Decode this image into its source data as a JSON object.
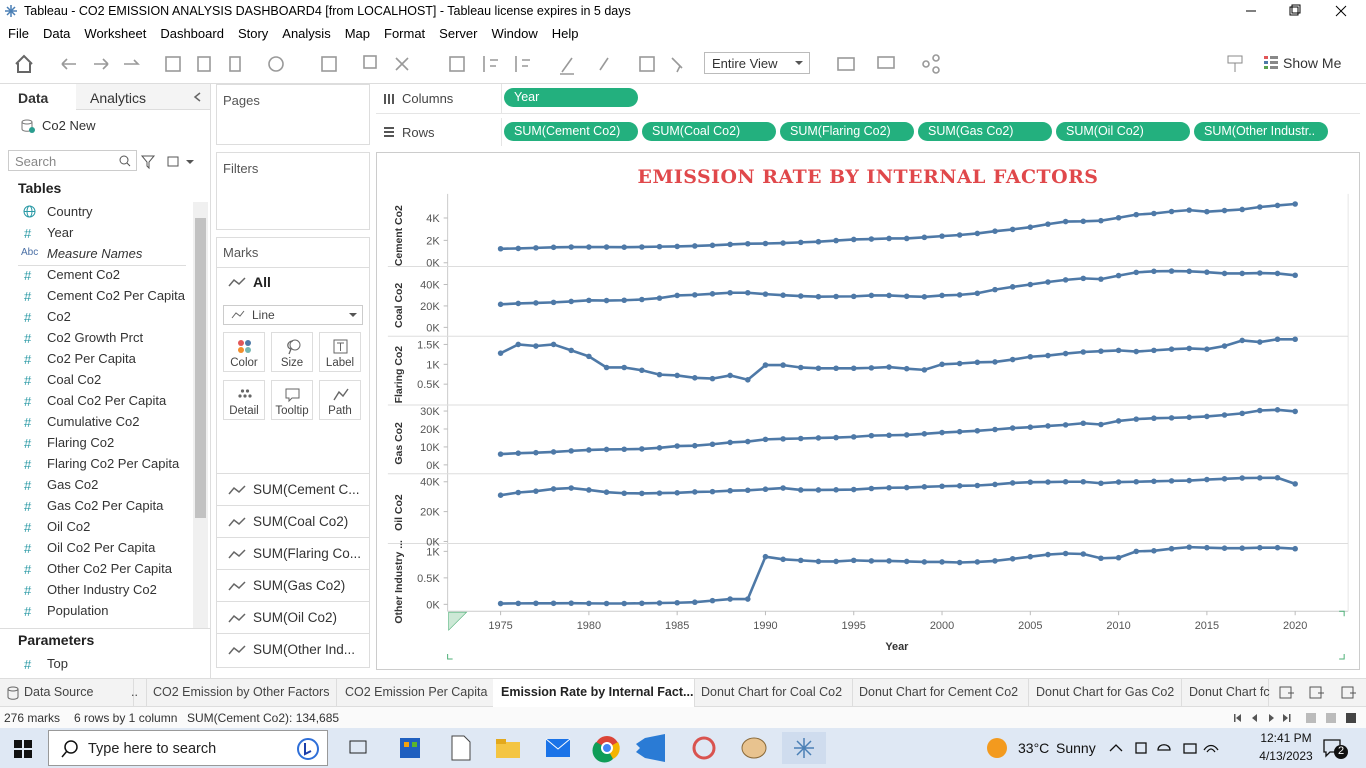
{
  "window": {
    "title": "Tableau - CO2 EMISSION ANALYSIS DASHBOARD4 [from LOCALHOST] - Tableau license expires in 5 days"
  },
  "menu": [
    "File",
    "Data",
    "Worksheet",
    "Dashboard",
    "Story",
    "Analysis",
    "Map",
    "Format",
    "Server",
    "Window",
    "Help"
  ],
  "toolbar": {
    "view_mode": "Entire View",
    "show_me": "Show Me"
  },
  "data_pane": {
    "tabs": [
      "Data",
      "Analytics"
    ],
    "source": "Co2 New",
    "search": "Search",
    "tables_header": "Tables",
    "fields": [
      {
        "name": "Country"
      },
      {
        "icon": "#",
        "name": "Year"
      },
      {
        "icon": "Abc",
        "name": "Measure Names"
      },
      {
        "icon": "#",
        "name": "Cement Co2"
      },
      {
        "icon": "#",
        "name": "Cement Co2 Per Capita"
      },
      {
        "icon": "#",
        "name": "Co2"
      },
      {
        "icon": "#",
        "name": "Co2 Growth Prct"
      },
      {
        "icon": "#",
        "name": "Co2 Per Capita"
      },
      {
        "icon": "#",
        "name": "Coal Co2"
      },
      {
        "icon": "#",
        "name": "Coal Co2 Per Capita"
      },
      {
        "icon": "#",
        "name": "Cumulative Co2"
      },
      {
        "icon": "#",
        "name": "Flaring Co2"
      },
      {
        "icon": "#",
        "name": "Flaring Co2 Per Capita"
      },
      {
        "icon": "#",
        "name": "Gas Co2"
      },
      {
        "icon": "#",
        "name": "Gas Co2 Per Capita"
      },
      {
        "icon": "#",
        "name": "Oil Co2"
      },
      {
        "icon": "#",
        "name": "Oil Co2 Per Capita"
      },
      {
        "icon": "#",
        "name": "Other Co2 Per Capita"
      },
      {
        "icon": "#",
        "name": "Other Industry Co2"
      },
      {
        "icon": "#",
        "name": "Population"
      }
    ],
    "parameters_header": "Parameters",
    "parameters": [
      {
        "icon": "#",
        "name": "Top"
      }
    ]
  },
  "cards": {
    "pages": "Pages",
    "filters": "Filters",
    "marks": "Marks",
    "marks_all": "All",
    "mark_type": "Line",
    "buttons": [
      "Color",
      "Size",
      "Label",
      "Detail",
      "Tooltip",
      "Path"
    ],
    "measures": [
      "SUM(Cement C...",
      "SUM(Coal Co2)",
      "SUM(Flaring Co...",
      "SUM(Gas Co2)",
      "SUM(Oil Co2)",
      "SUM(Other Ind..."
    ]
  },
  "shelves": {
    "columns_label": "Columns",
    "columns": [
      "Year"
    ],
    "rows_label": "Rows",
    "rows": [
      "SUM(Cement Co2)",
      "SUM(Coal Co2)",
      "SUM(Flaring Co2)",
      "SUM(Gas Co2)",
      "SUM(Oil Co2)",
      "SUM(Other Industr.."
    ]
  },
  "chart_data": [
    {
      "type": "line",
      "title": "EMISSION RATE BY INTERNAL FACTORS",
      "y_label": "Cement Co2",
      "color": "#4e79a7",
      "x": [
        1975,
        1976,
        1977,
        1978,
        1979,
        1980,
        1981,
        1982,
        1983,
        1984,
        1985,
        1986,
        1987,
        1988,
        1989,
        1990,
        1991,
        1992,
        1993,
        1994,
        1995,
        1996,
        1997,
        1998,
        1999,
        2000,
        2001,
        2002,
        2003,
        2004,
        2005,
        2006,
        2007,
        2008,
        2009,
        2010,
        2011,
        2012,
        2013,
        2014,
        2015,
        2016,
        2017,
        2018,
        2019,
        2020
      ],
      "values": [
        1250,
        1280,
        1330,
        1380,
        1400,
        1400,
        1400,
        1390,
        1410,
        1440,
        1460,
        1500,
        1560,
        1640,
        1700,
        1720,
        1760,
        1820,
        1880,
        1980,
        2080,
        2120,
        2170,
        2170,
        2270,
        2380,
        2480,
        2620,
        2820,
        2980,
        3180,
        3450,
        3680,
        3700,
        3760,
        4020,
        4300,
        4400,
        4580,
        4700,
        4560,
        4660,
        4760,
        4980,
        5120,
        5250
      ],
      "xlim": [
        1972,
        2023
      ],
      "ylim": [
        -250,
        5800
      ],
      "yticks": [
        {
          "value": 0,
          "label": "0K"
        },
        {
          "value": 2000,
          "label": "2K"
        },
        {
          "value": 4000,
          "label": "4K"
        }
      ]
    },
    {
      "type": "line",
      "y_label": "Coal Co2",
      "color": "#4e79a7",
      "x": [
        1975,
        1976,
        1977,
        1978,
        1979,
        1980,
        1981,
        1982,
        1983,
        1984,
        1985,
        1986,
        1987,
        1988,
        1989,
        1990,
        1991,
        1992,
        1993,
        1994,
        1995,
        1996,
        1997,
        1998,
        1999,
        2000,
        2001,
        2002,
        2003,
        2004,
        2005,
        2006,
        2007,
        2008,
        2009,
        2010,
        2011,
        2012,
        2013,
        2014,
        2015,
        2016,
        2017,
        2018,
        2019,
        2020
      ],
      "values": [
        21500,
        22300,
        22800,
        23300,
        24200,
        25200,
        25000,
        25300,
        26000,
        27300,
        29800,
        30300,
        31300,
        32300,
        32300,
        31000,
        30000,
        29200,
        28600,
        28800,
        28900,
        29800,
        29800,
        29000,
        28500,
        29800,
        30300,
        31800,
        35200,
        37800,
        40000,
        42300,
        44300,
        45700,
        45000,
        48300,
        51300,
        52300,
        52500,
        52300,
        51500,
        50300,
        50300,
        50700,
        50300,
        48600
      ],
      "xlim": [
        1972,
        2023
      ],
      "ylim": [
        -7400,
        55800
      ],
      "yticks": [
        {
          "value": 0,
          "label": "0K"
        },
        {
          "value": 20000,
          "label": "20K"
        },
        {
          "value": 40000,
          "label": "40K"
        }
      ]
    },
    {
      "type": "line",
      "y_label": "Flaring Co2",
      "color": "#4e79a7",
      "x": [
        1975,
        1976,
        1977,
        1978,
        1979,
        1980,
        1981,
        1982,
        1983,
        1984,
        1985,
        1986,
        1987,
        1988,
        1989,
        1990,
        1991,
        1992,
        1993,
        1994,
        1995,
        1996,
        1997,
        1998,
        1999,
        2000,
        2001,
        2002,
        2003,
        2004,
        2005,
        2006,
        2007,
        2008,
        2009,
        2010,
        2011,
        2012,
        2013,
        2014,
        2015,
        2016,
        2017,
        2018,
        2019,
        2020
      ],
      "values": [
        1280,
        1500,
        1460,
        1500,
        1350,
        1200,
        920,
        920,
        850,
        740,
        720,
        660,
        640,
        720,
        610,
        980,
        980,
        920,
        900,
        900,
        900,
        910,
        930,
        890,
        860,
        1000,
        1020,
        1050,
        1060,
        1120,
        1190,
        1220,
        1270,
        1310,
        1330,
        1350,
        1320,
        1350,
        1380,
        1400,
        1380,
        1460,
        1600,
        1560,
        1630,
        1630
      ],
      "xlim": [
        1972,
        2023
      ],
      "ylim": [
        0,
        1680
      ],
      "yticks": [
        {
          "value": 500,
          "label": "0.5K"
        },
        {
          "value": 1000,
          "label": "1K"
        },
        {
          "value": 1500,
          "label": "1.5K"
        }
      ]
    },
    {
      "type": "line",
      "y_label": "Gas Co2",
      "color": "#4e79a7",
      "x": [
        1975,
        1976,
        1977,
        1978,
        1979,
        1980,
        1981,
        1982,
        1983,
        1984,
        1985,
        1986,
        1987,
        1988,
        1989,
        1990,
        1991,
        1992,
        1993,
        1994,
        1995,
        1996,
        1997,
        1998,
        1999,
        2000,
        2001,
        2002,
        2003,
        2004,
        2005,
        2006,
        2007,
        2008,
        2009,
        2010,
        2011,
        2012,
        2013,
        2014,
        2015,
        2016,
        2017,
        2018,
        2019,
        2020
      ],
      "values": [
        6000,
        6500,
        6800,
        7200,
        7800,
        8300,
        8600,
        8700,
        8900,
        9500,
        10500,
        10700,
        11500,
        12500,
        13000,
        14200,
        14500,
        14700,
        15000,
        15200,
        15600,
        16300,
        16500,
        16700,
        17300,
        18000,
        18500,
        19000,
        19700,
        20500,
        21000,
        21700,
        22300,
        23200,
        22500,
        24500,
        25500,
        26000,
        26200,
        26500,
        27000,
        27800,
        28700,
        30300,
        30700,
        29800
      ],
      "xlim": [
        1972,
        2023
      ],
      "ylim": [
        -4400,
        32800
      ],
      "yticks": [
        {
          "value": 0,
          "label": "0K"
        },
        {
          "value": 10000,
          "label": "10K"
        },
        {
          "value": 20000,
          "label": "20K"
        },
        {
          "value": 30000,
          "label": "30K"
        }
      ]
    },
    {
      "type": "line",
      "y_label": "Oil Co2",
      "color": "#4e79a7",
      "x": [
        1975,
        1976,
        1977,
        1978,
        1979,
        1980,
        1981,
        1982,
        1983,
        1984,
        1985,
        1986,
        1987,
        1988,
        1989,
        1990,
        1991,
        1992,
        1993,
        1994,
        1995,
        1996,
        1997,
        1998,
        1999,
        2000,
        2001,
        2002,
        2003,
        2004,
        2005,
        2006,
        2007,
        2008,
        2009,
        2010,
        2011,
        2012,
        2013,
        2014,
        2015,
        2016,
        2017,
        2018,
        2019,
        2020
      ],
      "values": [
        31000,
        32800,
        33700,
        35200,
        35800,
        34500,
        33000,
        32300,
        32200,
        32400,
        32600,
        33200,
        33400,
        34000,
        34300,
        35000,
        35800,
        34500,
        34500,
        34600,
        34800,
        35500,
        36000,
        36100,
        36600,
        37000,
        37300,
        37500,
        38200,
        39200,
        39700,
        39800,
        40000,
        40000,
        39000,
        39800,
        40000,
        40300,
        40600,
        40800,
        41500,
        42000,
        42500,
        42600,
        42700,
        38600
      ],
      "xlim": [
        1972,
        2023
      ],
      "ylim": [
        -700,
        44700
      ],
      "yticks": [
        {
          "value": 0,
          "label": "0K"
        },
        {
          "value": 20000,
          "label": "20K"
        },
        {
          "value": 40000,
          "label": "40K"
        }
      ]
    },
    {
      "type": "line",
      "y_label": "Other Industry ...",
      "x_label": "Year",
      "color": "#4e79a7",
      "x": [
        1975,
        1976,
        1977,
        1978,
        1979,
        1980,
        1981,
        1982,
        1983,
        1984,
        1985,
        1986,
        1987,
        1988,
        1989,
        1990,
        1991,
        1992,
        1993,
        1994,
        1995,
        1996,
        1997,
        1998,
        1999,
        2000,
        2001,
        2002,
        2003,
        2004,
        2005,
        2006,
        2007,
        2008,
        2009,
        2010,
        2011,
        2012,
        2013,
        2014,
        2015,
        2016,
        2017,
        2018,
        2019,
        2020
      ],
      "values": [
        15,
        18,
        20,
        20,
        22,
        18,
        16,
        16,
        20,
        25,
        30,
        40,
        70,
        100,
        100,
        900,
        850,
        830,
        810,
        810,
        830,
        820,
        820,
        810,
        800,
        800,
        790,
        800,
        820,
        860,
        900,
        940,
        960,
        950,
        870,
        880,
        1000,
        1010,
        1050,
        1080,
        1070,
        1060,
        1060,
        1070,
        1070,
        1050
      ],
      "xlim": [
        1972,
        2023
      ],
      "ylim": [
        -130,
        1130
      ],
      "xticks": [
        1975,
        1980,
        1985,
        1990,
        1995,
        2000,
        2005,
        2010,
        2015,
        2020
      ],
      "yticks": [
        {
          "value": 0,
          "label": "0K"
        },
        {
          "value": 500,
          "label": "0.5K"
        },
        {
          "value": 1000,
          "label": "1K"
        }
      ]
    }
  ],
  "sheet_tabs": [
    "Data Source",
    "..",
    "CO2 Emission by Other Factors",
    "CO2 Emission Per Capita",
    "Emission Rate by Internal Fact...",
    "Donut Chart for Coal Co2",
    "Donut Chart for Cement Co2",
    "Donut Chart for Gas Co2",
    "Donut Chart fc"
  ],
  "status": {
    "marks": "276 marks",
    "shape": "6 rows by 1 column",
    "sum": "SUM(Cement Co2): 134,685"
  },
  "taskbar": {
    "search": "Type here to search",
    "temperature": "33°C",
    "weather": "Sunny",
    "time": "12:41 PM",
    "date": "4/13/2023",
    "notifications": "2"
  }
}
